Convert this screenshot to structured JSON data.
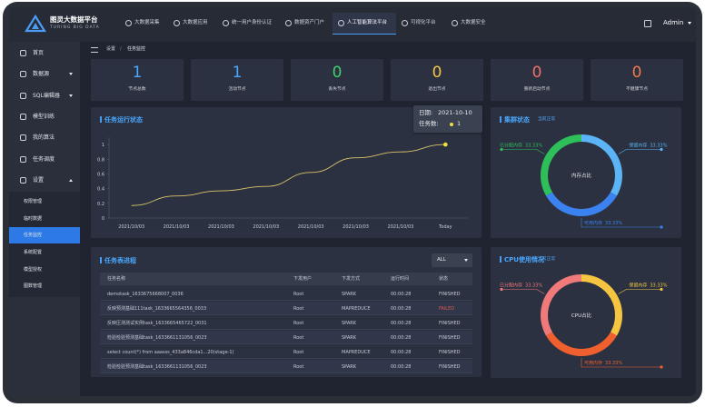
{
  "header": {
    "title": "图灵大数据平台",
    "subtitle": "TURING BIG DATA",
    "nav": [
      {
        "label": "大数据采集"
      },
      {
        "label": "大数据应用"
      },
      {
        "label": "统一用户身份认证"
      },
      {
        "label": "数据资产门户"
      },
      {
        "label": "人工智能算法平台",
        "active": true
      },
      {
        "label": "可视化平台"
      },
      {
        "label": "大数据安全"
      }
    ],
    "user": "Admin"
  },
  "sidebar": {
    "items": [
      {
        "label": "首页"
      },
      {
        "label": "数据源",
        "expanded": false
      },
      {
        "label": "SQL编辑器",
        "expanded": false
      },
      {
        "label": "模型训练"
      },
      {
        "label": "我的算法"
      },
      {
        "label": "任务调度"
      },
      {
        "label": "设置",
        "expanded": true,
        "children": [
          {
            "label": "权限管理"
          },
          {
            "label": "临时数据"
          },
          {
            "label": "任务监控",
            "active": true
          },
          {
            "label": "系统配置"
          },
          {
            "label": "模型授权"
          },
          {
            "label": "图数管理"
          }
        ]
      }
    ]
  },
  "breadcrumb": [
    "设置",
    "任务监控"
  ],
  "stats": [
    {
      "value": 1,
      "label": "节点总数",
      "color": "#4aa8ff"
    },
    {
      "value": 1,
      "label": "活动节点",
      "color": "#4aa8ff"
    },
    {
      "value": 0,
      "label": "丢失节点",
      "color": "#3fcf6d"
    },
    {
      "value": 0,
      "label": "退出节点",
      "color": "#f4c542"
    },
    {
      "value": 0,
      "label": "重新启动节点",
      "color": "#f0706a"
    },
    {
      "value": 0,
      "label": "不健康节点",
      "color": "#f07a4a"
    }
  ],
  "chart_data": [
    {
      "type": "line",
      "title": "任务运行状态",
      "categories": [
        "2021/10/03",
        "2021/10/03",
        "2021/10/03",
        "2021/10/03",
        "2021/10/03",
        "2021/10/03",
        "2021/10/03",
        "Today"
      ],
      "values": [
        0.17,
        0.3,
        0.37,
        0.43,
        0.62,
        0.82,
        0.9,
        1
      ],
      "color": "#d9c56a",
      "ylim": [
        0,
        1.1
      ],
      "yticks": [
        0,
        0.2,
        0.4,
        0.6,
        0.8,
        1
      ],
      "grid": false,
      "tooltip": {
        "date_label": "日期:",
        "date": "2021-10-10",
        "count_label": "任务数:",
        "count": 1
      }
    },
    {
      "type": "pie",
      "title": "集群状态",
      "status": "当前正常",
      "center_label": "内存占比",
      "categories": [
        "保留内存",
        "可用内存",
        "已分配内存"
      ],
      "values": [
        33.33,
        33.33,
        33.33
      ],
      "value_labels": [
        "33.33%",
        "33.33%",
        "33.33%"
      ],
      "colors": [
        "#5ab4f5",
        "#3b82f0",
        "#2fbf5a"
      ]
    },
    {
      "type": "pie",
      "title": "CPU使用情况",
      "status": "当前正常",
      "center_label": "CPU占比",
      "categories": [
        "保留内存",
        "可用内存",
        "已分配内存"
      ],
      "values": [
        33.33,
        33.33,
        33.33
      ],
      "value_labels": [
        "33.33%",
        "33.33%",
        "33.33%"
      ],
      "colors": [
        "#f5c542",
        "#f0602f",
        "#f07a7a"
      ]
    }
  ],
  "table": {
    "title": "任务表进程",
    "filter": "ALL",
    "columns": [
      "任务名称",
      "下发用户",
      "下发方式",
      "运行时间",
      "状态"
    ],
    "rows": [
      [
        "demotask_1633675668007_0036",
        "Root",
        "SPARK",
        "00:00:28",
        "FINISHED"
      ],
      [
        "反映预测基础111task_1633665564356_0033",
        "Root",
        "MAPREDUCE",
        "00:00:28",
        "FAILED"
      ],
      [
        "反映压测测试实例task_1633665465722_0031",
        "Root",
        "SPARK",
        "00:00:28",
        "FINISHED"
      ],
      [
        "检验检验预测基础task_1633661131056_0023",
        "Root",
        "SPARK",
        "00:00:28",
        "FINISHED"
      ],
      [
        "select count(*) from aaasss_433a846cda1...20(stage-1)",
        "Root",
        "MAPREDUCE",
        "00:00:28",
        "FINISHED"
      ],
      [
        "检验检验预测基础task_1633661131056_0023",
        "Root",
        "SPARK",
        "00:00:28",
        "FINISHED"
      ]
    ],
    "status_colors": {
      "FINISHED": "#c5cad4",
      "FAILED": "#e0584c"
    }
  }
}
